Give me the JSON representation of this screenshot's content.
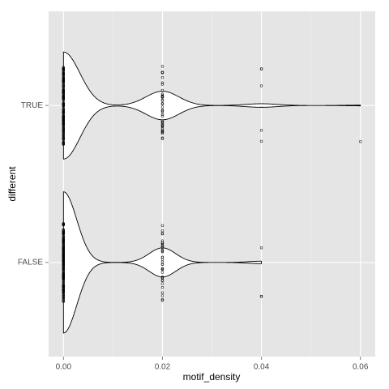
{
  "chart_data": {
    "type": "violin",
    "xlabel": "motif_density",
    "ylabel": "different",
    "categories": [
      "FALSE",
      "TRUE"
    ],
    "series": [
      {
        "x": [
          0,
          0.02,
          0.04
        ],
        "counts": [
          170,
          35,
          3
        ]
      },
      {
        "x": [
          0,
          0.02,
          0.04,
          0.06
        ],
        "counts": [
          150,
          40,
          5,
          1
        ]
      }
    ],
    "xlim": [
      -0.003,
      0.063
    ],
    "xticks": [
      {
        "value": 0,
        "label": "0.00"
      },
      {
        "value": 0.02,
        "label": "0.02"
      },
      {
        "value": 0.04,
        "label": "0.04"
      },
      {
        "value": 0.06,
        "label": "0.06"
      }
    ],
    "xminor": [
      0.01,
      0.03,
      0.05
    ],
    "grid": true,
    "color": "#000000"
  }
}
